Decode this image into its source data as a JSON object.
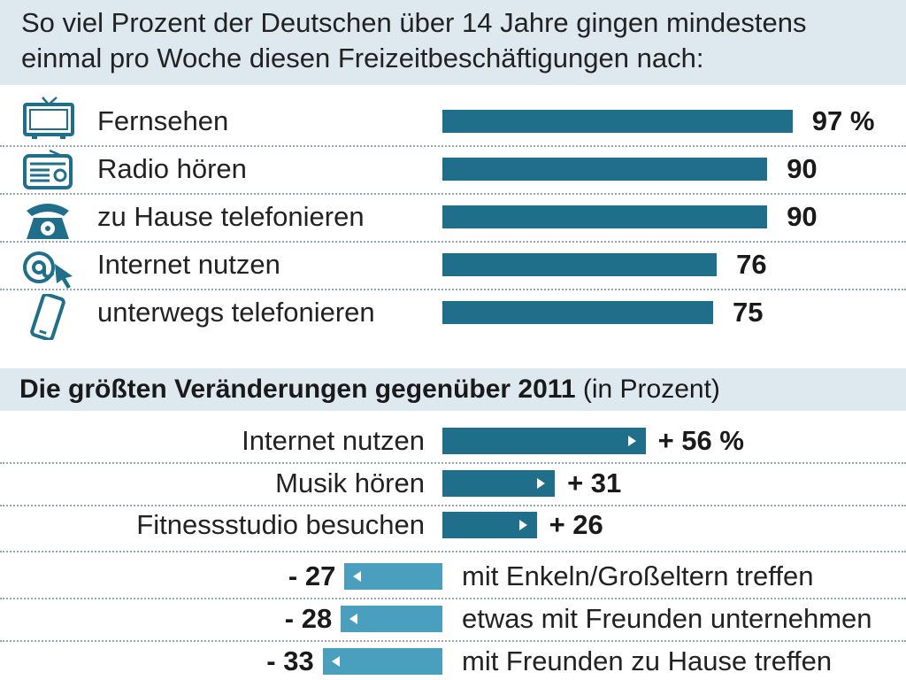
{
  "header": {
    "line1": "So viel Prozent der Deutschen über 14 Jahre gingen mindestens",
    "line2": "einmal pro Woche diesen Freizeitbeschäftigungen nach:"
  },
  "colors": {
    "bar_dark": "#1f6f8b",
    "bar_light": "#4a9fbe",
    "band": "#dde8ef"
  },
  "chart_data": [
    {
      "type": "bar",
      "orientation": "horizontal",
      "title": "So viel Prozent der Deutschen über 14 Jahre gingen mindestens einmal pro Woche diesen Freizeitbeschäftigungen nach:",
      "categories": [
        "Fernsehen",
        "Radio hören",
        "zu Hause telefonieren",
        "Internet nutzen",
        "unterwegs telefonieren"
      ],
      "values": [
        97,
        90,
        90,
        76,
        75
      ],
      "value_labels": [
        "97 %",
        "90",
        "90",
        "76",
        "75"
      ],
      "icons": [
        "tv-icon",
        "radio-icon",
        "telephone-icon",
        "internet-icon",
        "mobile-phone-icon"
      ],
      "xlim": [
        0,
        100
      ]
    },
    {
      "type": "bar",
      "orientation": "horizontal-diverging",
      "title": "Die größten Veränderungen gegenüber 2011",
      "subtitle": "(in Prozent)",
      "categories": [
        "Internet nutzen",
        "Musik hören",
        "Fitnessstudio besuchen",
        "mit Enkeln/Großeltern treffen",
        "etwas mit Freunden unternehmen",
        "mit Freunden zu Hause treffen"
      ],
      "values": [
        56,
        31,
        26,
        -27,
        -28,
        -33
      ],
      "value_labels": [
        "+ 56 %",
        "+ 31",
        "+ 26",
        "- 27",
        "- 28",
        "- 33"
      ]
    }
  ]
}
